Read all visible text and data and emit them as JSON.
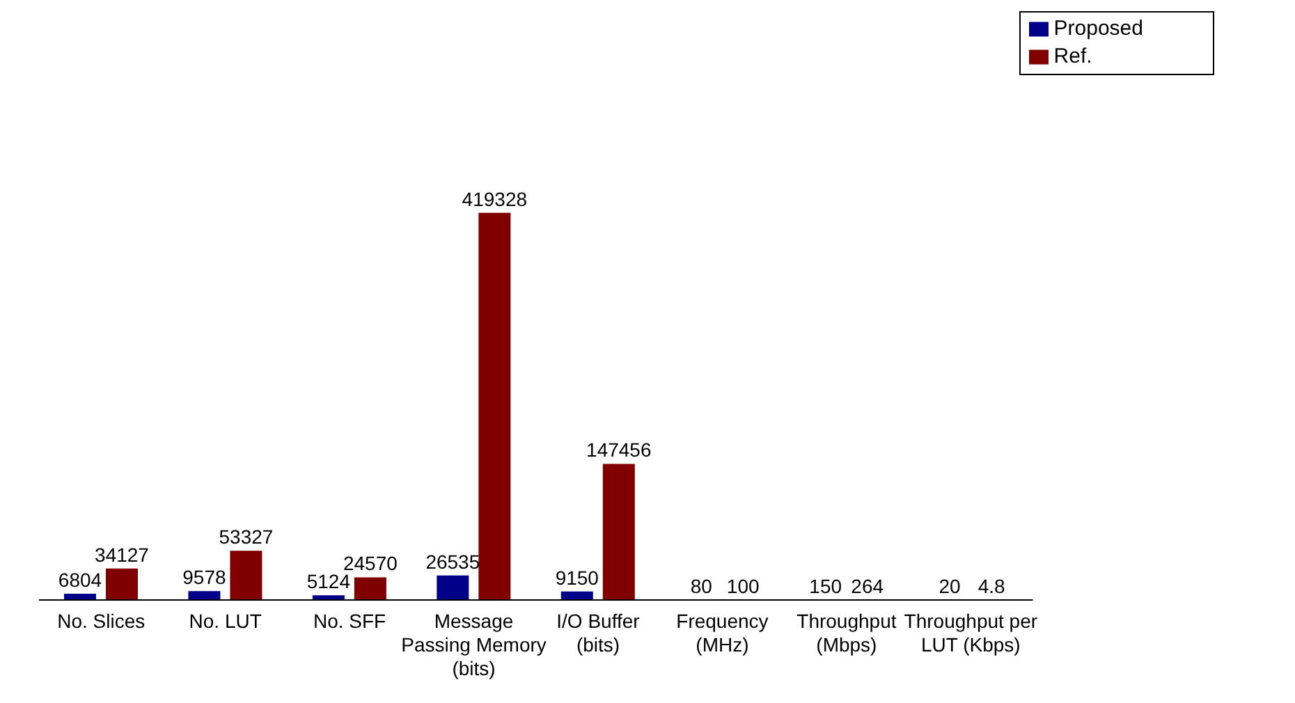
{
  "chart_data": {
    "type": "bar",
    "categories": [
      "No. Slices",
      "No. LUT",
      "No. SFF",
      "Message Passing Memory (bits)",
      "I/O Buffer (bits)",
      "Frequency (MHz)",
      "Throughput (Mbps)",
      "Throughput per LUT (Kbps)"
    ],
    "series": [
      {
        "name": "Proposed",
        "color": "#000088",
        "values": [
          6804,
          9578,
          5124,
          26535,
          9150,
          80,
          150,
          20
        ]
      },
      {
        "name": "Ref.",
        "color": "#800000",
        "values": [
          34127,
          53327,
          24570,
          419328,
          147456,
          100,
          264,
          4.8
        ]
      }
    ],
    "data_labels": true,
    "legend": "top right"
  }
}
